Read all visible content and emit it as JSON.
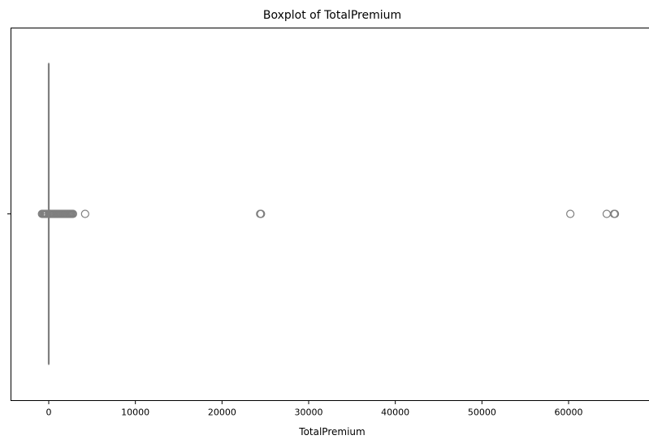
{
  "chart_data": {
    "type": "boxplot",
    "orientation": "horizontal",
    "title": "Boxplot of TotalPremium",
    "xlabel": "TotalPremium",
    "ylabel": "",
    "xlim": [
      -3300,
      68000
    ],
    "xticks": [
      0,
      10000,
      20000,
      30000,
      40000,
      50000,
      60000
    ],
    "xtick_labels": [
      "0",
      "10000",
      "20000",
      "30000",
      "40000",
      "50000",
      "60000"
    ],
    "grid": false,
    "box": {
      "min": -1000,
      "q1": 0,
      "median": 0,
      "q3": 3,
      "max": 2200,
      "color": "#7f7f7f",
      "face_color": "#ffffff"
    },
    "outliers": [
      -782,
      -700,
      -600,
      -500,
      -400,
      -300,
      -200,
      100,
      150,
      200,
      300,
      400,
      500,
      600,
      700,
      800,
      900,
      1000,
      1100,
      1200,
      1300,
      1400,
      1500,
      1600,
      1700,
      1800,
      1900,
      2000,
      2100,
      2200,
      2300,
      2400,
      2500,
      2600,
      2700,
      2800,
      4200,
      24400,
      24450,
      24500,
      60200,
      64400,
      65250,
      65350
    ],
    "outlier_color": "#7f7f7f"
  }
}
